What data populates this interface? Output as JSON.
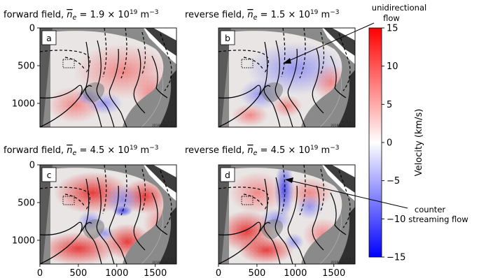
{
  "panels": [
    {
      "id": "a",
      "label": "a",
      "title_prefix": "forward field, ",
      "title_mid": " = 1.9 × 10",
      "title_exp": "19",
      "title_unit": " m",
      "title_unit_exp": "−3",
      "flow": "forward",
      "stamp": [
        "t=1.4 s",
        "20180109 026"
      ]
    },
    {
      "id": "b",
      "label": "b",
      "title_prefix": "reverse field, ",
      "title_mid": " = 1.5 × 10",
      "title_exp": "19",
      "title_unit": " m",
      "title_unit_exp": "−3",
      "flow": "reverse",
      "stamp": [
        "t=1.4 s",
        "20180201 047"
      ]
    },
    {
      "id": "c",
      "label": "c",
      "title_prefix": "forward field, ",
      "title_mid": " = 4.5 × 10",
      "title_exp": "19",
      "title_unit": " m",
      "title_unit_exp": "−3",
      "flow": "forward-strong",
      "stamp": [
        "t=1.4 s",
        "20180109 026"
      ]
    },
    {
      "id": "d",
      "label": "d",
      "title_prefix": "reverse field, ",
      "title_mid": " = 4.5 × 10",
      "title_exp": "19",
      "title_unit": " m",
      "title_unit_exp": "−3",
      "flow": "counter",
      "stamp": [
        "t=2.6 s",
        "20180202 056"
      ]
    }
  ],
  "title_symbol": "n",
  "title_symbol_sub": "e",
  "y_ticks": [
    "0",
    "500",
    "1000"
  ],
  "x_ticks": [
    "0",
    "500",
    "1000",
    "1500"
  ],
  "colorbar": {
    "label": "Velocity (km/s)",
    "ticks": [
      "15",
      "10",
      "5",
      "0",
      "−5",
      "−10",
      "−15"
    ],
    "max_color": "#ff0000",
    "mid_color": "#ffffff",
    "min_color": "#0000ff"
  },
  "annotations": [
    {
      "lines": [
        "unidirectional",
        "flow"
      ]
    },
    {
      "lines": [
        "counter",
        "streaming flow"
      ]
    }
  ]
}
